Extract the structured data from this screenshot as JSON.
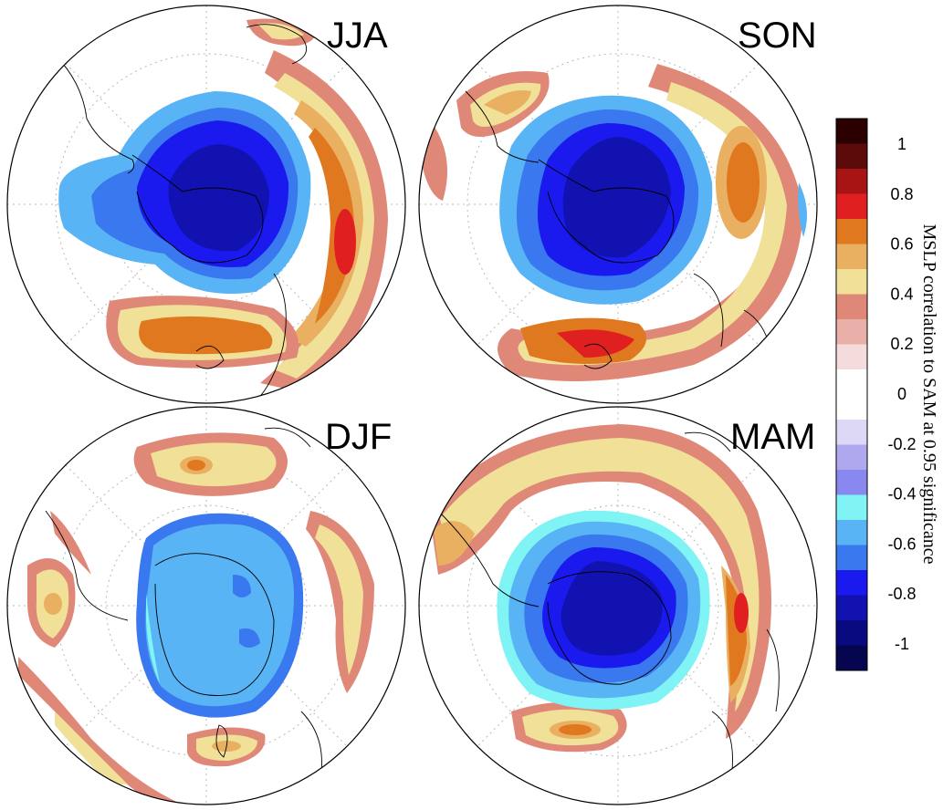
{
  "panels": [
    {
      "label": "JJA"
    },
    {
      "label": "SON"
    },
    {
      "label": "DJF"
    },
    {
      "label": "MAM"
    }
  ],
  "colorbar": {
    "title": "MSLP correlation to SAM at 0.95 significance",
    "tick_labels": [
      "1",
      "0.8",
      "0.6",
      "0.4",
      "0.2",
      "0",
      "-0.2",
      "-0.4",
      "-0.6",
      "-0.8",
      "-1"
    ],
    "colors_top_to_bottom": [
      "#2a0000",
      "#5c0a0a",
      "#a81414",
      "#e02020",
      "#e07820",
      "#e8b060",
      "#f0e098",
      "#e08878",
      "#e8b0a8",
      "#f5dcdc",
      "#ffffff",
      "#ffffff",
      "#dcd8f5",
      "#b0a8ee",
      "#8888f0",
      "#80f4f4",
      "#58b4f4",
      "#3a78f0",
      "#1a1aee",
      "#1212b0",
      "#0a0a80",
      "#060650"
    ]
  },
  "colors": {
    "neg_light": "#58b4f4",
    "neg_mid": "#3a78f0",
    "neg_strong": "#1a1aee",
    "neg_core": "#1212b0",
    "cyan": "#80f4f4",
    "pos_pink": "#e08878",
    "pos_yellow": "#f0e098",
    "pos_tan": "#e8b060",
    "pos_orange": "#e07820",
    "pos_red": "#e02020"
  }
}
